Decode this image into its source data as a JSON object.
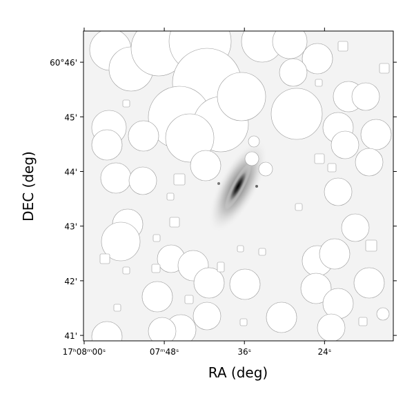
{
  "chart_data": {
    "type": "image",
    "xlabel": "RA (deg)",
    "ylabel": "DEC (deg)",
    "xlim": [
      61680.1,
      61633.7
    ],
    "xticks": [
      {
        "value": 61680,
        "label": "17ʰ08ᵐ00ˢ"
      },
      {
        "value": 61668,
        "label": "07ᵐ48ˢ"
      },
      {
        "value": 61656,
        "label": "36ˢ"
      },
      {
        "value": 61644,
        "label": "24ˢ"
      }
    ],
    "ylim": [
      40.9,
      46.57
    ],
    "yticks": [
      {
        "value": 46,
        "label": "60°46'"
      },
      {
        "value": 45,
        "label": "45'"
      },
      {
        "value": 44,
        "label": "44'"
      },
      {
        "value": 43,
        "label": "43'"
      },
      {
        "value": 42,
        "label": "42'"
      },
      {
        "value": 41,
        "label": "41'"
      }
    ]
  }
}
